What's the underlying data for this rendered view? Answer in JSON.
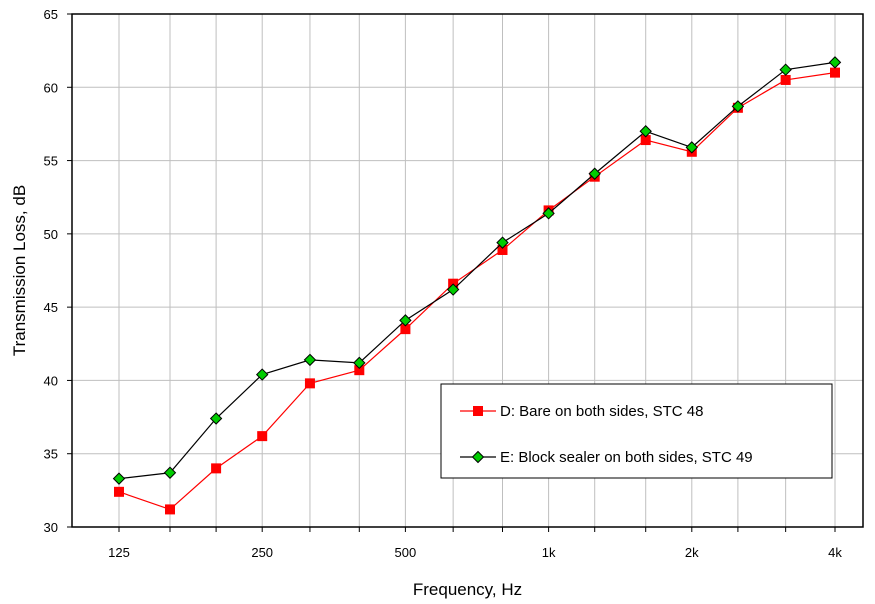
{
  "chart_data": {
    "type": "line",
    "title": "",
    "xlabel": "Frequency, Hz",
    "ylabel": "Transmission Loss, dB",
    "ylim": [
      30,
      65
    ],
    "y_ticks": [
      "30",
      "35",
      "40",
      "45",
      "50",
      "55",
      "60",
      "65"
    ],
    "x": [
      125,
      160,
      200,
      250,
      315,
      400,
      500,
      630,
      800,
      1000,
      1250,
      1600,
      2000,
      2500,
      3150,
      4000
    ],
    "x_tick_labels": [
      "125",
      "250",
      "500",
      "1k",
      "2k",
      "4k"
    ],
    "x_tick_label_positions": [
      125,
      250,
      500,
      1000,
      2000,
      4000
    ],
    "grid": true,
    "legend_position": "bottom-right",
    "series": [
      {
        "name": "D: Bare on both sides, STC 48",
        "color": "#ff0000",
        "marker": "square",
        "values": [
          32.4,
          31.2,
          34.0,
          36.2,
          39.8,
          40.7,
          43.5,
          46.6,
          48.9,
          51.6,
          53.9,
          56.4,
          55.6,
          58.6,
          60.5,
          61.0
        ]
      },
      {
        "name": "E: Block sealer on both sides, STC 49",
        "color": "#000000",
        "marker_color": "#00cc00",
        "marker": "diamond",
        "values": [
          33.3,
          33.7,
          37.4,
          40.4,
          41.4,
          41.2,
          44.1,
          46.2,
          49.4,
          51.4,
          54.1,
          57.0,
          55.9,
          58.7,
          61.2,
          61.7
        ]
      }
    ]
  }
}
